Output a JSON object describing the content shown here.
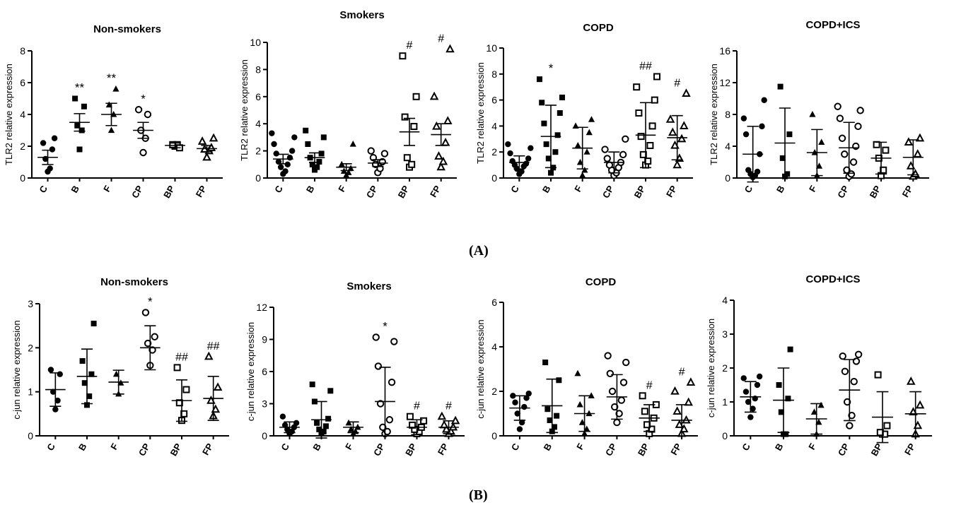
{
  "panel_labels": [
    "(A)",
    "(B)"
  ],
  "chart_data": [
    {
      "id": "A1",
      "type": "scatter",
      "title": "Non-smokers",
      "ylabel": "TLR2 relative expression",
      "ylim": [
        0,
        8
      ],
      "yticks": [
        0,
        2,
        4,
        6,
        8
      ],
      "categories": [
        "C",
        "B",
        "F",
        "CP",
        "BP",
        "FP"
      ],
      "markers": [
        "filled-circle",
        "filled-square",
        "filled-triangle",
        "open-circle",
        "open-square",
        "open-triangle"
      ],
      "error_style": "sem",
      "mean": [
        1.3,
        3.5,
        4.0,
        3.0,
        2.05,
        1.85
      ],
      "err": [
        0.45,
        0.55,
        0.7,
        0.5,
        0.15,
        0.2
      ],
      "points": [
        [
          0.4,
          0.6,
          1.2,
          1.8,
          2.2,
          2.5
        ],
        [
          1.8,
          3.0,
          3.3,
          4.5,
          5.0
        ],
        [
          3.0,
          4.0,
          4.6,
          5.6
        ],
        [
          1.6,
          2.5,
          3.0,
          4.0,
          4.3
        ],
        [
          2.0,
          2.1,
          2.1,
          1.9
        ],
        [
          1.3,
          1.7,
          1.8,
          1.9,
          2.3,
          2.5
        ]
      ],
      "annotations": [
        "",
        "**",
        "**",
        "*",
        "",
        ""
      ]
    },
    {
      "id": "A2",
      "type": "scatter",
      "title": "Smokers",
      "ylabel": "TLR2 relative expression",
      "ylim": [
        0,
        10
      ],
      "yticks": [
        0,
        2,
        4,
        6,
        8,
        10
      ],
      "categories": [
        "C",
        "B",
        "F",
        "CP",
        "BP",
        "FP"
      ],
      "markers": [
        "filled-circle",
        "filled-square",
        "filled-triangle",
        "open-circle",
        "open-square",
        "open-triangle"
      ],
      "error_style": "sem",
      "mean": [
        1.4,
        1.5,
        0.8,
        1.1,
        3.4,
        3.2
      ],
      "err": [
        0.35,
        0.35,
        0.25,
        0.25,
        1.0,
        0.8
      ],
      "points": [
        [
          0.3,
          0.5,
          0.8,
          1.0,
          1.2,
          1.5,
          1.8,
          2.0,
          2.5,
          3.0,
          3.3
        ],
        [
          0.6,
          0.8,
          1.0,
          1.2,
          1.5,
          1.8,
          2.5,
          3.0,
          3.5
        ],
        [
          0.2,
          0.4,
          0.5,
          0.7,
          1.0,
          2.5
        ],
        [
          0.4,
          0.7,
          1.0,
          1.2,
          1.5,
          1.8,
          2.0
        ],
        [
          0.8,
          1.0,
          1.5,
          3.8,
          4.5,
          6.0,
          9.0
        ],
        [
          0.8,
          1.2,
          1.6,
          2.6,
          3.8,
          4.2,
          6.0,
          9.5
        ]
      ],
      "annotations": [
        "",
        "",
        "",
        "",
        "#",
        "#"
      ]
    },
    {
      "id": "A3",
      "type": "scatter",
      "title": "COPD",
      "ylabel": "TLR2 relative expression",
      "ylim": [
        0,
        10
      ],
      "yticks": [
        0,
        2,
        4,
        6,
        8,
        10
      ],
      "categories": [
        "C",
        "B",
        "F",
        "CP",
        "BP",
        "FP"
      ],
      "markers": [
        "filled-circle",
        "filled-square",
        "filled-triangle",
        "open-circle",
        "open-square",
        "open-triangle"
      ],
      "error_style": "sd",
      "mean": [
        1.2,
        3.2,
        2.3,
        1.2,
        3.3,
        3.1
      ],
      "err": [
        0.5,
        2.4,
        1.6,
        0.8,
        2.5,
        1.7
      ],
      "points": [
        [
          0.3,
          0.5,
          0.7,
          0.9,
          1.0,
          1.1,
          1.3,
          1.5,
          1.9,
          2.3,
          2.6
        ],
        [
          0.4,
          0.8,
          1.5,
          2.0,
          2.6,
          3.3,
          4.2,
          5.0,
          5.8,
          6.2,
          7.6
        ],
        [
          0.2,
          0.6,
          1.2,
          2.0,
          2.5,
          3.5,
          4.0,
          4.5
        ],
        [
          0.2,
          0.4,
          0.6,
          0.8,
          1.0,
          1.2,
          1.5,
          1.8,
          2.2,
          3.0
        ],
        [
          1.0,
          1.3,
          1.8,
          2.5,
          3.2,
          4.0,
          5.0,
          6.0,
          7.0,
          7.8
        ],
        [
          1.0,
          1.5,
          2.5,
          3.0,
          3.5,
          4.0,
          4.5,
          6.5
        ]
      ],
      "annotations": [
        "",
        "*",
        "",
        "",
        "##",
        "#"
      ]
    },
    {
      "id": "A4",
      "type": "scatter",
      "title": "COPD+ICS",
      "ylabel": "TLR2 relative expression",
      "ylim": [
        0,
        16
      ],
      "yticks": [
        0,
        4,
        8,
        12,
        16
      ],
      "categories": [
        "C",
        "B",
        "F",
        "CP",
        "BP",
        "FP"
      ],
      "markers": [
        "filled-circle",
        "filled-square",
        "filled-triangle",
        "open-circle",
        "open-square",
        "open-triangle"
      ],
      "error_style": "sd",
      "mean": [
        3.0,
        4.4,
        3.2,
        3.8,
        2.5,
        2.6
      ],
      "err": [
        3.5,
        4.4,
        2.9,
        3.2,
        2.0,
        2.2
      ],
      "points": [
        [
          0.1,
          0.3,
          0.5,
          0.8,
          1.0,
          3.0,
          5.5,
          6.5,
          7.5,
          9.8
        ],
        [
          0.2,
          0.5,
          2.5,
          5.5,
          11.5
        ],
        [
          0.3,
          1.5,
          3.2,
          4.5,
          8.0
        ],
        [
          0.2,
          0.5,
          1.0,
          2.0,
          3.0,
          4.0,
          5.0,
          6.5,
          7.5,
          8.5,
          9.0
        ],
        [
          0.3,
          1.0,
          2.5,
          3.5,
          4.2
        ],
        [
          0.2,
          0.5,
          1.5,
          3.0,
          4.5,
          5.0
        ]
      ],
      "annotations": [
        "",
        "",
        "",
        "",
        "",
        ""
      ]
    },
    {
      "id": "B1",
      "type": "scatter",
      "title": "Non-smokers",
      "ylabel": "c-jun relative expression",
      "ylim": [
        0,
        3
      ],
      "yticks": [
        0,
        1,
        2,
        3
      ],
      "categories": [
        "C",
        "B",
        "F",
        "CP",
        "BP",
        "FP"
      ],
      "markers": [
        "filled-circle",
        "filled-square",
        "filled-triangle",
        "open-circle",
        "open-square",
        "open-triangle"
      ],
      "error_style": "sd",
      "mean": [
        1.05,
        1.35,
        1.22,
        2.0,
        0.8,
        0.85
      ],
      "err": [
        0.38,
        0.62,
        0.27,
        0.5,
        0.47,
        0.5
      ],
      "points": [
        [
          0.6,
          0.8,
          1.0,
          1.4,
          1.5
        ],
        [
          0.7,
          0.9,
          1.2,
          1.4,
          1.7,
          2.55
        ],
        [
          0.95,
          1.2,
          1.4
        ],
        [
          1.6,
          1.95,
          2.1,
          2.25,
          2.8
        ],
        [
          0.35,
          0.5,
          0.75,
          1.05,
          1.55
        ],
        [
          0.45,
          0.6,
          0.8,
          1.1,
          1.8
        ]
      ],
      "annotations": [
        "",
        "",
        "",
        "*",
        "##",
        "##"
      ]
    },
    {
      "id": "B2",
      "type": "scatter",
      "title": "Smokers",
      "ylabel": "c-jun relative expression",
      "ylim": [
        0,
        12
      ],
      "yticks": [
        0,
        3,
        6,
        9,
        12
      ],
      "categories": [
        "C",
        "B",
        "F",
        "CP",
        "BP",
        "FP"
      ],
      "markers": [
        "filled-circle",
        "filled-square",
        "filled-triangle",
        "open-circle",
        "open-square",
        "open-triangle"
      ],
      "error_style": "sd",
      "mean": [
        0.8,
        1.5,
        0.8,
        3.2,
        0.8,
        0.8
      ],
      "err": [
        0.5,
        1.7,
        0.5,
        3.2,
        0.7,
        0.6
      ],
      "points": [
        [
          0.2,
          0.4,
          0.6,
          0.8,
          1.0,
          1.2,
          1.8
        ],
        [
          0.2,
          0.4,
          0.6,
          0.9,
          1.2,
          1.6,
          3.2,
          4.2,
          4.8
        ],
        [
          0.2,
          0.4,
          0.6,
          0.8,
          1.2
        ],
        [
          0.2,
          0.4,
          0.8,
          1.5,
          3.0,
          5.0,
          6.5,
          8.8,
          9.2
        ],
        [
          0.2,
          0.4,
          0.6,
          0.8,
          1.0,
          1.4,
          1.8
        ],
        [
          0.2,
          0.4,
          0.6,
          0.8,
          1.0,
          1.4,
          1.8
        ]
      ],
      "annotations": [
        "",
        "",
        "",
        "*",
        "#",
        "#"
      ]
    },
    {
      "id": "B3",
      "type": "scatter",
      "title": "COPD",
      "ylabel": "c-jun relative expression",
      "ylim": [
        0,
        6
      ],
      "yticks": [
        0,
        2,
        4,
        6
      ],
      "categories": [
        "C",
        "B",
        "F",
        "CP",
        "BP",
        "FP"
      ],
      "markers": [
        "filled-circle",
        "filled-square",
        "filled-triangle",
        "open-circle",
        "open-square",
        "open-triangle"
      ],
      "error_style": "sd",
      "mean": [
        1.25,
        1.35,
        1.0,
        1.75,
        0.8,
        0.7
      ],
      "err": [
        0.55,
        1.2,
        0.8,
        1.0,
        0.6,
        0.7
      ],
      "points": [
        [
          0.3,
          0.6,
          1.0,
          1.3,
          1.5,
          1.7,
          1.8,
          1.9
        ],
        [
          0.2,
          0.4,
          0.7,
          0.9,
          1.2,
          2.5,
          3.3
        ],
        [
          0.1,
          0.3,
          0.6,
          1.0,
          1.4,
          1.8,
          2.8
        ],
        [
          0.6,
          1.0,
          1.3,
          1.6,
          2.0,
          2.4,
          2.8,
          3.3,
          3.6
        ],
        [
          0.1,
          0.3,
          0.5,
          0.8,
          1.1,
          1.4,
          1.8
        ],
        [
          0.1,
          0.3,
          0.5,
          0.7,
          1.1,
          1.5,
          2.0,
          2.4
        ]
      ],
      "annotations": [
        "",
        "",
        "",
        "",
        "#",
        "#"
      ]
    },
    {
      "id": "B4",
      "type": "scatter",
      "title": "COPD+ICS",
      "ylabel": "c-jun relative expression",
      "ylim": [
        0,
        4
      ],
      "yticks": [
        0,
        1,
        2,
        3,
        4
      ],
      "categories": [
        "C",
        "B",
        "F",
        "CP",
        "BP",
        "FP"
      ],
      "markers": [
        "filled-circle",
        "filled-square",
        "filled-triangle",
        "open-circle",
        "open-square",
        "open-triangle"
      ],
      "error_style": "sd",
      "mean": [
        1.15,
        1.05,
        0.5,
        1.35,
        0.55,
        0.65
      ],
      "err": [
        0.45,
        0.95,
        0.45,
        0.9,
        0.75,
        0.65
      ],
      "points": [
        [
          0.55,
          0.8,
          1.0,
          1.1,
          1.3,
          1.5,
          1.7,
          1.75
        ],
        [
          0.05,
          0.05,
          0.7,
          1.1,
          1.5,
          2.55
        ],
        [
          0.05,
          0.4,
          0.7,
          0.9
        ],
        [
          0.3,
          0.6,
          1.0,
          1.6,
          1.9,
          2.2,
          2.35,
          2.4
        ],
        [
          0.05,
          0.05,
          0.1,
          0.3,
          1.8
        ],
        [
          0.05,
          0.3,
          0.7,
          0.9,
          1.6
        ]
      ],
      "annotations": [
        "",
        "",
        "",
        "",
        "",
        ""
      ]
    }
  ]
}
